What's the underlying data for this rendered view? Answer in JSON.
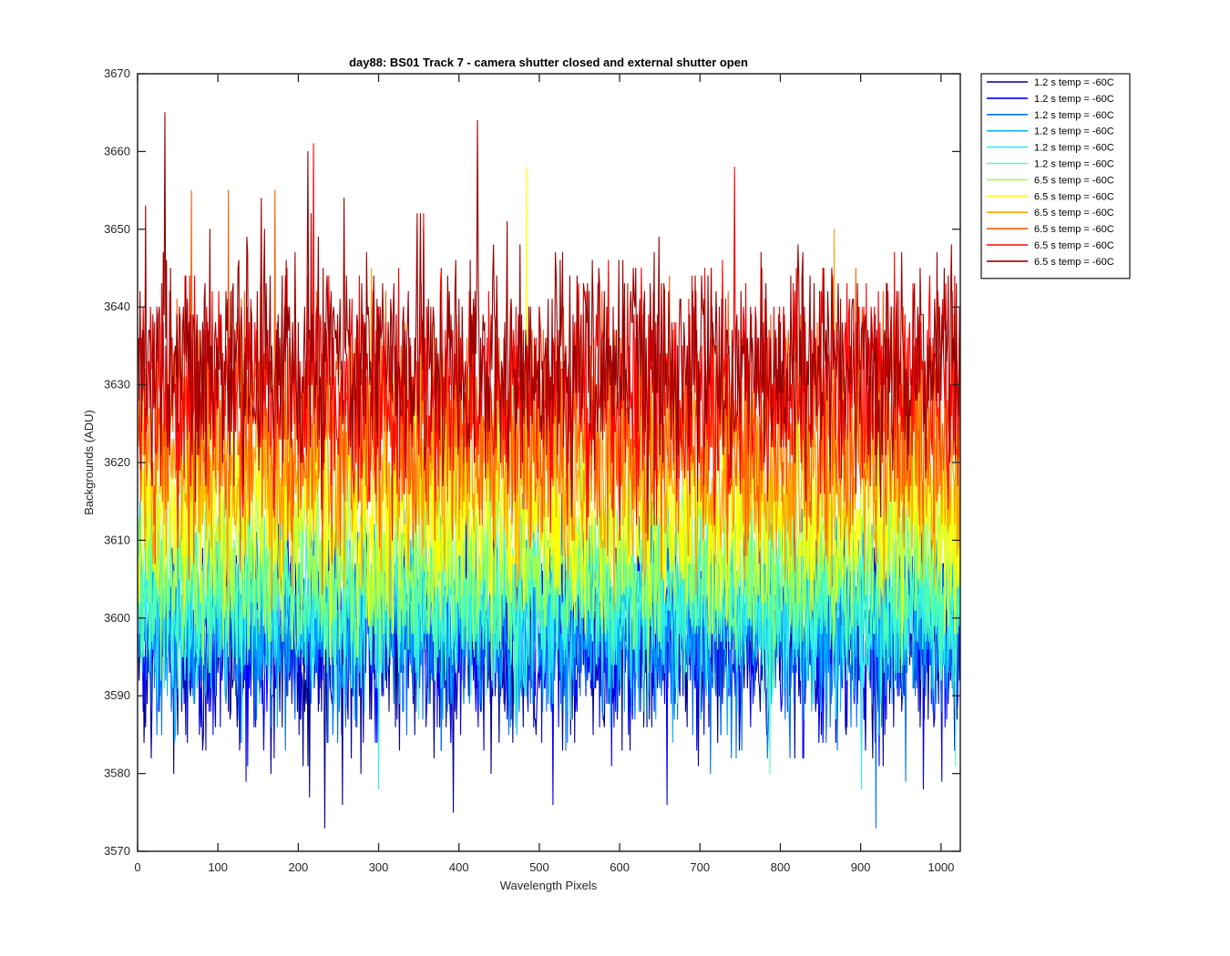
{
  "chart_data": {
    "type": "line",
    "title": "day88: BS01  Track 7 - camera shutter closed and external shutter open",
    "xlabel": "Wavelength Pixels",
    "ylabel": "Backgrounds (ADU)",
    "xlim": [
      0,
      1024
    ],
    "ylim": [
      3570,
      3670
    ],
    "xticks": [
      0,
      100,
      200,
      300,
      400,
      500,
      600,
      700,
      800,
      900,
      1000
    ],
    "yticks": [
      3570,
      3580,
      3590,
      3600,
      3610,
      3620,
      3630,
      3640,
      3650,
      3660,
      3670
    ],
    "grid": false,
    "legend_position": "outside-top-right",
    "n_points": 1024,
    "series": [
      {
        "name": "1.2 s temp = -60C",
        "color": "#00008f",
        "mean": 3597.0,
        "spread": 6.5,
        "spikes": [
          [
            232,
            3573
          ],
          [
            254,
            3576
          ],
          [
            213,
            3577
          ],
          [
            392,
            3575
          ]
        ]
      },
      {
        "name": "1.2 s temp = -60C",
        "color": "#0000ff",
        "mean": 3597.8,
        "spread": 6.3,
        "spikes": [
          [
            516,
            3576
          ],
          [
            658,
            3576
          ],
          [
            977,
            3578
          ],
          [
            134,
            3579
          ]
        ]
      },
      {
        "name": "1.2 s temp = -60C",
        "color": "#0070ff",
        "mean": 3598.6,
        "spread": 6.0,
        "spikes": [
          [
            918,
            3573
          ],
          [
            712,
            3580
          ],
          [
            955,
            3579
          ]
        ]
      },
      {
        "name": "1.2 s temp = -60C",
        "color": "#00b0ff",
        "mean": 3600.0,
        "spread": 5.8,
        "spikes": [
          [
            18,
            3611
          ],
          [
            601,
            3609
          ]
        ]
      },
      {
        "name": "1.2 s temp = -60C",
        "color": "#30f0f0",
        "mean": 3602.2,
        "spread": 5.6,
        "spikes": [
          [
            299,
            3578
          ],
          [
            900,
            3578
          ]
        ]
      },
      {
        "name": "1.2 s temp = -60C",
        "color": "#50ffb0",
        "mean": 3603.6,
        "spread": 5.5,
        "spikes": [
          [
            1017,
            3581
          ],
          [
            786,
            3580
          ]
        ]
      },
      {
        "name": "6.5 s temp = -60C",
        "color": "#a0ff50",
        "mean": 3608.5,
        "spread": 6.0,
        "spikes": [
          [
            472,
            3620
          ]
        ]
      },
      {
        "name": "6.5 s temp = -60C",
        "color": "#ffff00",
        "mean": 3614.5,
        "spread": 6.8,
        "spikes": [
          [
            483,
            3658
          ],
          [
            66,
            3640
          ]
        ]
      },
      {
        "name": "6.5 s temp = -60C",
        "color": "#ffa000",
        "mean": 3619.8,
        "spread": 7.0,
        "spikes": [
          [
            866,
            3650
          ],
          [
            290,
            3645
          ]
        ]
      },
      {
        "name": "6.5 s temp = -60C",
        "color": "#ff5a00",
        "mean": 3624.8,
        "spread": 7.2,
        "spikes": [
          [
            112,
            3655
          ],
          [
            170,
            3655
          ],
          [
            66,
            3655
          ]
        ]
      },
      {
        "name": "6.5 s temp = -60C",
        "color": "#ff0000",
        "mean": 3629.5,
        "spread": 7.2,
        "spikes": [
          [
            218,
            3661
          ],
          [
            742,
            3658
          ],
          [
            355,
            3652
          ]
        ]
      },
      {
        "name": "6.5 s temp = -60C",
        "color": "#990000",
        "mean": 3632.8,
        "spread": 7.2,
        "spikes": [
          [
            33,
            3665
          ],
          [
            422,
            3664
          ],
          [
            211,
            3660
          ],
          [
            9,
            3653
          ]
        ]
      }
    ]
  }
}
